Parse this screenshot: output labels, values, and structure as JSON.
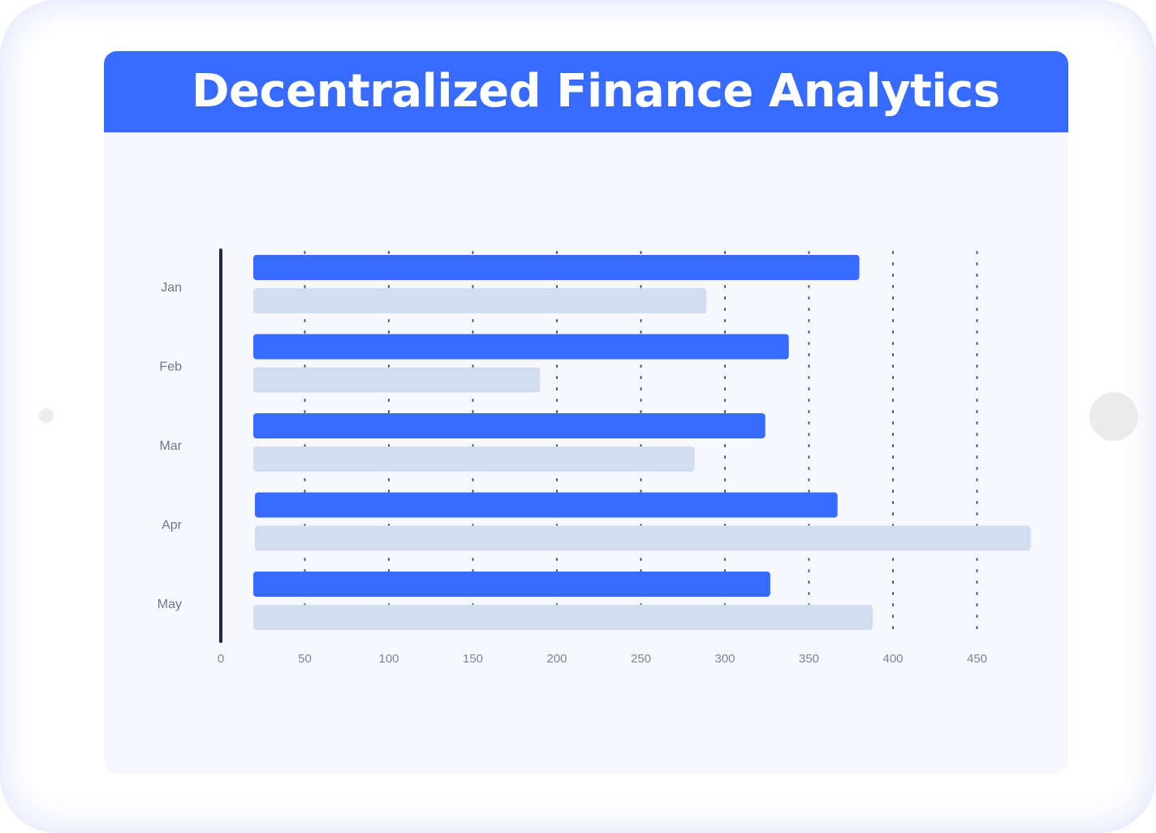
{
  "title": "Decentralized Finance Analytics",
  "colors": {
    "primary": "#376bff",
    "secondary": "#d2def0",
    "axis": "#1f2a44",
    "tick_text": "#7a8596",
    "category_text": "#6e7787"
  },
  "chart_data": {
    "type": "bar",
    "orientation": "horizontal",
    "categories": [
      "Jan",
      "Feb",
      "Mar",
      "Apr",
      "May"
    ],
    "series": [
      {
        "values": [
          380,
          338,
          324,
          367,
          327
        ],
        "color": "#376bff"
      },
      {
        "values": [
          289,
          190,
          282,
          482,
          388
        ],
        "color": "#d2def0"
      }
    ],
    "x_ticks": [
      0,
      50,
      100,
      150,
      200,
      250,
      300,
      350,
      400,
      450
    ],
    "xlim": [
      0,
      480
    ],
    "grid": "vertical dotted",
    "legend": "none"
  }
}
